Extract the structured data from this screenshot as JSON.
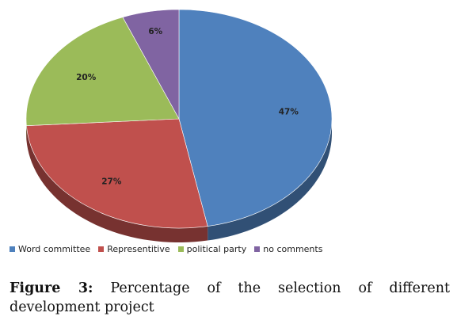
{
  "chart_data": {
    "type": "pie",
    "categories": [
      "Word committee",
      "Representitive",
      "political party",
      "no comments"
    ],
    "values": [
      47,
      27,
      20,
      6
    ],
    "value_labels": [
      "47%",
      "27%",
      "20%",
      "6%"
    ],
    "colors": [
      "#4F81BD",
      "#C0504D",
      "#9BBB59",
      "#8064A2"
    ],
    "legend_position": "bottom-left",
    "style": "3d"
  },
  "caption": {
    "label": "Figure 3:",
    "text": " Percentage of the selection of different development project"
  }
}
